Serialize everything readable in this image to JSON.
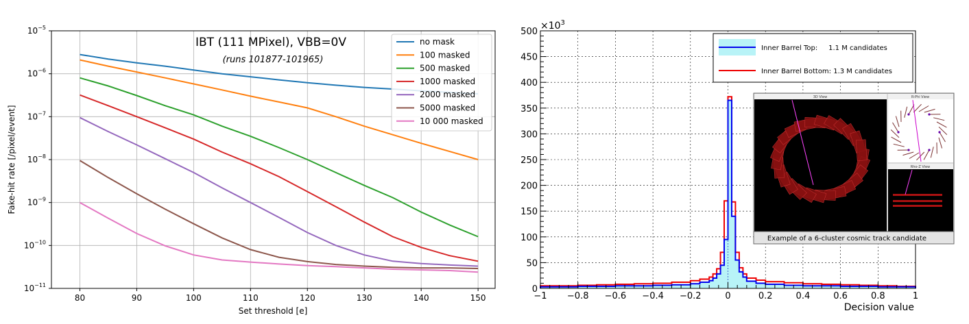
{
  "chart_data": [
    {
      "type": "line",
      "title": "IBT (111 MPixel), VBB=0V",
      "subtitle": "(runs 101877-101965)",
      "xlabel": "Set threshold [e]",
      "ylabel": "Fake-hit rate [/pixel/event]",
      "xlim": [
        75,
        153
      ],
      "ylim": [
        1e-11,
        1e-05
      ],
      "yscale": "log",
      "grid": true,
      "legend_position": "top-right",
      "x_ticks": [
        80,
        90,
        100,
        110,
        120,
        130,
        140,
        150
      ],
      "x_tick_labels": [
        "80",
        "90",
        "100",
        "110",
        "120",
        "130",
        "140",
        "150"
      ],
      "y_ticks": [
        1e-11,
        1e-10,
        1e-09,
        1e-08,
        1e-07,
        1e-06,
        1e-05
      ],
      "y_tick_base": [
        "10",
        "10",
        "10",
        "10",
        "10",
        "10",
        "10"
      ],
      "y_tick_exp": [
        "−11",
        "−10",
        "−9",
        "−8",
        "−7",
        "−6",
        "−5"
      ],
      "x": [
        80,
        85,
        90,
        95,
        100,
        105,
        110,
        115,
        120,
        125,
        130,
        135,
        140,
        145,
        150
      ],
      "series": [
        {
          "name": "no mask",
          "color": "#1f77b4",
          "values": [
            2.8e-06,
            2.2e-06,
            1.8e-06,
            1.5e-06,
            1.22e-06,
            1e-06,
            8.5e-07,
            7.2e-07,
            6.2e-07,
            5.4e-07,
            4.8e-07,
            4.4e-07,
            4e-07,
            3.7e-07,
            3.4e-07
          ]
        },
        {
          "name": "100 masked",
          "color": "#ff7f0e",
          "values": [
            2.1e-06,
            1.5e-06,
            1.1e-06,
            8e-07,
            5.8e-07,
            4.2e-07,
            3e-07,
            2.2e-07,
            1.6e-07,
            1e-07,
            6e-08,
            3.8e-08,
            2.4e-08,
            1.55e-08,
            1e-08
          ]
        },
        {
          "name": "500 masked",
          "color": "#2ca02c",
          "values": [
            8e-07,
            5.2e-07,
            3.1e-07,
            1.8e-07,
            1.1e-07,
            6e-08,
            3.5e-08,
            1.9e-08,
            1e-08,
            5e-09,
            2.5e-09,
            1.3e-09,
            6e-10,
            3e-10,
            1.6e-10
          ]
        },
        {
          "name": "1000 masked",
          "color": "#d62728",
          "values": [
            3.2e-07,
            1.8e-07,
            1e-07,
            5.5e-08,
            3e-08,
            1.5e-08,
            8e-09,
            4e-09,
            1.8e-09,
            8e-10,
            3.5e-10,
            1.6e-10,
            9e-11,
            5.8e-11,
            4.3e-11
          ]
        },
        {
          "name": "2000 masked",
          "color": "#9467bd",
          "values": [
            9.5e-08,
            4.5e-08,
            2.2e-08,
            1.05e-08,
            5e-09,
            2.2e-09,
            1e-09,
            4.5e-10,
            2e-10,
            1e-10,
            6e-11,
            4.3e-11,
            3.8e-11,
            3.5e-11,
            3.3e-11
          ]
        },
        {
          "name": "5000 masked",
          "color": "#8c564b",
          "values": [
            9.5e-09,
            3.8e-09,
            1.6e-09,
            7e-10,
            3.2e-10,
            1.5e-10,
            8e-11,
            5.3e-11,
            4.2e-11,
            3.6e-11,
            3.3e-11,
            3.1e-11,
            3e-11,
            3e-11,
            2.9e-11
          ]
        },
        {
          "name": "10 000 masked",
          "color": "#e377c2",
          "values": [
            1e-09,
            4.3e-10,
            1.9e-10,
            9.8e-11,
            6e-11,
            4.6e-11,
            4.1e-11,
            3.7e-11,
            3.4e-11,
            3.2e-11,
            3e-11,
            2.8e-11,
            2.7e-11,
            2.6e-11,
            2.4e-11
          ]
        }
      ]
    },
    {
      "type": "histogram",
      "xlabel": "Decision value",
      "ylabel_multiplier": "×10",
      "ylabel_multiplier_exp": "3",
      "xlim": [
        -1,
        1
      ],
      "ylim": [
        0,
        500
      ],
      "grid": true,
      "legend_position": "top-right",
      "x_ticks": [
        -1,
        -0.8,
        -0.6,
        -0.4,
        -0.2,
        0,
        0.2,
        0.4,
        0.6,
        0.8,
        1
      ],
      "x_tick_labels": [
        "−1",
        "−0.8",
        "−0.6",
        "−0.4",
        "−0.2",
        "0",
        "0.2",
        "0.4",
        "0.6",
        "0.8",
        "1"
      ],
      "y_ticks": [
        0,
        50,
        100,
        150,
        200,
        250,
        300,
        350,
        400,
        450,
        500
      ],
      "y_tick_labels": [
        "0",
        "50",
        "100",
        "150",
        "200",
        "250",
        "300",
        "350",
        "400",
        "450",
        "500"
      ],
      "bin_edges": [
        -1.0,
        -0.9,
        -0.8,
        -0.7,
        -0.6,
        -0.5,
        -0.4,
        -0.3,
        -0.2,
        -0.15,
        -0.1,
        -0.08,
        -0.06,
        -0.04,
        -0.02,
        0.0,
        0.02,
        0.04,
        0.06,
        0.08,
        0.1,
        0.15,
        0.2,
        0.3,
        0.4,
        0.5,
        0.6,
        0.7,
        0.8,
        0.9,
        1.0
      ],
      "series": [
        {
          "name": "Inner Barrel Top:     1.1 M candidates",
          "color": "#0000ee",
          "fill": "#b8f3f7",
          "values": [
            3,
            3,
            4,
            4,
            5,
            5,
            6,
            7,
            9,
            12,
            15,
            20,
            28,
            45,
            95,
            365,
            140,
            55,
            32,
            22,
            14,
            10,
            8,
            6,
            5,
            5,
            4,
            4,
            3,
            3
          ]
        },
        {
          "name": "Inner Barrel Bottom: 1.3 M candidates",
          "color": "#ee0000",
          "values": [
            5,
            5,
            6,
            7,
            8,
            9,
            10,
            12,
            15,
            18,
            22,
            28,
            38,
            70,
            170,
            372,
            168,
            70,
            40,
            28,
            20,
            16,
            13,
            11,
            9,
            8,
            7,
            6,
            5,
            4
          ]
        }
      ],
      "inset": {
        "caption": "Example of a 6-cluster cosmic track candidate",
        "panel_titles": [
          "3D View",
          "R-Phi View",
          "Rho-Z View"
        ]
      }
    }
  ]
}
